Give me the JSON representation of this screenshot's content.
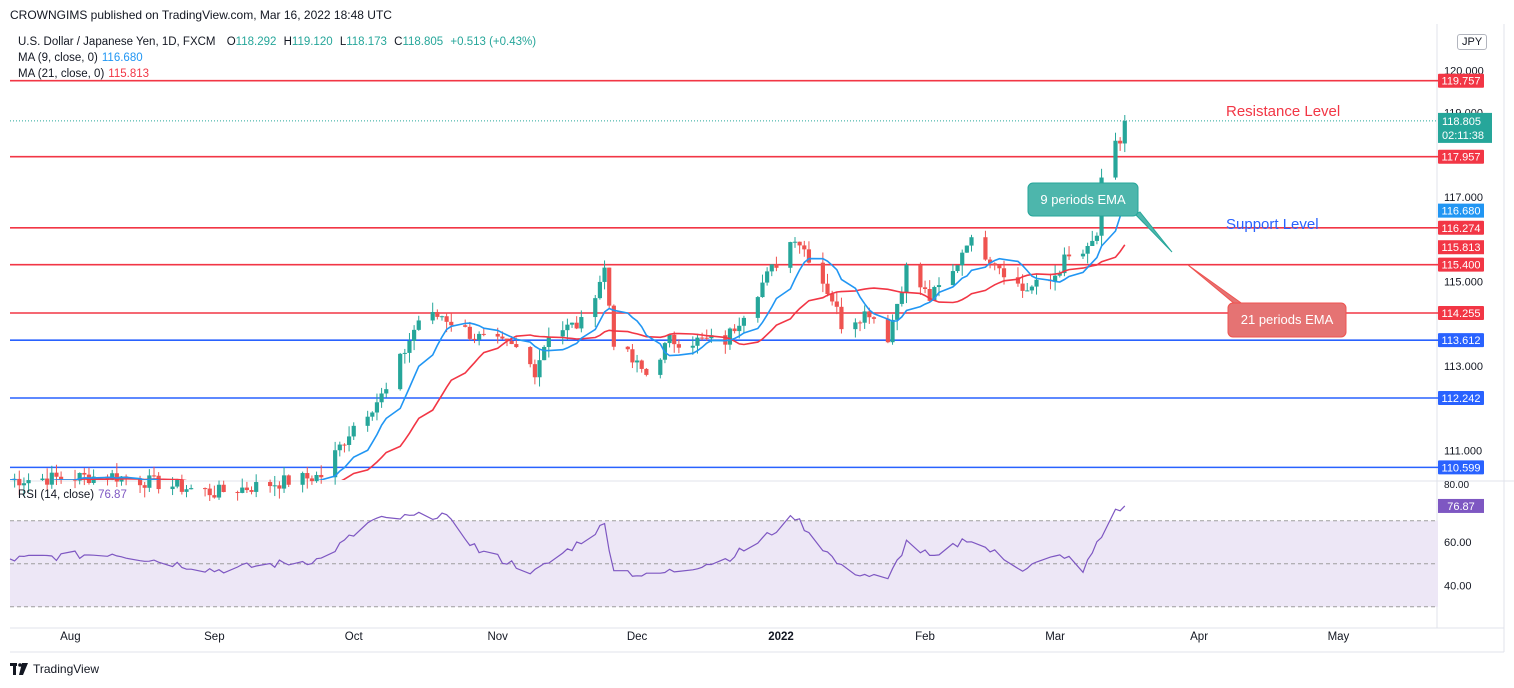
{
  "header": {
    "published": "CROWNGIMS published on TradingView.com, Mar 16, 2022 18:48 UTC",
    "symbol": "U.S. Dollar / Japanese Yen, 1D, FXCM",
    "o_label": "O",
    "o": "118.292",
    "h_label": "H",
    "h": "119.120",
    "l_label": "L",
    "l": "118.173",
    "c_label": "C",
    "c": "118.805",
    "change": "+0.513 (+0.43%)",
    "ma9_label": "MA (9, close, 0)",
    "ma9_value": "116.680",
    "ma21_label": "MA (21, close, 0)",
    "ma21_value": "115.813",
    "rsi_label": "RSI (14, close)",
    "rsi_value": "76.87",
    "currency": "JPY"
  },
  "footer": {
    "brand": "TradingView"
  },
  "colors": {
    "up": "#26a69a",
    "down": "#ef5350",
    "ma9": "#2196f3",
    "ma21": "#f23645",
    "resistance": "#f23645",
    "support": "#2962ff",
    "rsi": "#7e57c2",
    "rsi_band": "#ede7f6"
  },
  "chart_data": {
    "type": "candlestick",
    "x_axis": {
      "range": [
        "2021-07-19",
        "2022-05-22"
      ],
      "ticks": [
        {
          "date": "2021-08-01",
          "label": "Aug"
        },
        {
          "date": "2021-09-01",
          "label": "Sep"
        },
        {
          "date": "2021-10-01",
          "label": "Oct"
        },
        {
          "date": "2021-11-01",
          "label": "Nov"
        },
        {
          "date": "2021-12-01",
          "label": "Dec"
        },
        {
          "date": "2022-01-01",
          "label": "2022"
        },
        {
          "date": "2022-02-01",
          "label": "Feb"
        },
        {
          "date": "2022-03-01",
          "label": "Mar"
        },
        {
          "date": "2022-04-01",
          "label": "Apr"
        },
        {
          "date": "2022-05-01",
          "label": "May"
        }
      ]
    },
    "price_axis": {
      "ylim": [
        110.3,
        121.1
      ],
      "ticks": [
        "111.000",
        "113.000",
        "115.000",
        "117.000",
        "119.000",
        "120.000"
      ]
    },
    "horizontal_levels": [
      {
        "value": 119.757,
        "label": "119.757",
        "kind": "resistance"
      },
      {
        "value": 117.957,
        "label": "117.957",
        "kind": "resistance"
      },
      {
        "value": 116.274,
        "label": "116.274",
        "kind": "resistance"
      },
      {
        "value": 115.4,
        "label": "115.400",
        "kind": "resistance"
      },
      {
        "value": 114.255,
        "label": "114.255",
        "kind": "resistance"
      },
      {
        "value": 113.612,
        "label": "113.612",
        "kind": "support"
      },
      {
        "value": 112.242,
        "label": "112.242",
        "kind": "support"
      },
      {
        "value": 110.599,
        "label": "110.599",
        "kind": "support"
      }
    ],
    "last_price": {
      "value": 118.805,
      "label": "118.805",
      "countdown": "02:11:38"
    },
    "ma_tags": [
      {
        "value": 116.68,
        "label": "116.680",
        "series": "ma9"
      },
      {
        "value": 115.813,
        "label": "115.813",
        "series": "ma21"
      }
    ],
    "annotations": [
      {
        "text": "Resistance Level",
        "kind": "text"
      },
      {
        "text": "Support Level",
        "kind": "text"
      },
      {
        "text": "9 periods EMA",
        "kind": "callout"
      },
      {
        "text": "21 periods EMA",
        "kind": "callout"
      }
    ],
    "anchors": [
      {
        "date": "2021-07-19",
        "close": 110.3
      },
      {
        "date": "2021-08-10",
        "close": 110.4
      },
      {
        "date": "2021-09-01",
        "close": 110.0
      },
      {
        "date": "2021-09-24",
        "close": 110.4
      },
      {
        "date": "2021-10-01",
        "close": 111.6
      },
      {
        "date": "2021-10-08",
        "close": 112.4
      },
      {
        "date": "2021-10-15",
        "close": 114.1
      },
      {
        "date": "2021-10-20",
        "close": 114.2
      },
      {
        "date": "2021-10-27",
        "close": 113.7
      },
      {
        "date": "2021-11-05",
        "close": 113.4
      },
      {
        "date": "2021-11-09",
        "close": 112.9
      },
      {
        "date": "2021-11-12",
        "close": 113.8
      },
      {
        "date": "2021-11-19",
        "close": 114.0
      },
      {
        "date": "2021-11-24",
        "close": 115.3
      },
      {
        "date": "2021-11-26",
        "close": 113.6
      },
      {
        "date": "2021-11-30",
        "close": 113.1
      },
      {
        "date": "2021-12-03",
        "close": 112.8
      },
      {
        "date": "2021-12-08",
        "close": 113.6
      },
      {
        "date": "2021-12-14",
        "close": 113.6
      },
      {
        "date": "2021-12-20",
        "close": 113.6
      },
      {
        "date": "2021-12-27",
        "close": 114.8
      },
      {
        "date": "2022-01-04",
        "close": 116.1
      },
      {
        "date": "2022-01-07",
        "close": 115.6
      },
      {
        "date": "2022-01-12",
        "close": 114.6
      },
      {
        "date": "2022-01-14",
        "close": 114.0
      },
      {
        "date": "2022-01-20",
        "close": 114.3
      },
      {
        "date": "2022-01-24",
        "close": 113.7
      },
      {
        "date": "2022-01-28",
        "close": 115.3
      },
      {
        "date": "2022-02-02",
        "close": 114.6
      },
      {
        "date": "2022-02-07",
        "close": 115.2
      },
      {
        "date": "2022-02-10",
        "close": 116.0
      },
      {
        "date": "2022-02-16",
        "close": 115.5
      },
      {
        "date": "2022-02-22",
        "close": 114.8
      },
      {
        "date": "2022-02-28",
        "close": 115.0
      },
      {
        "date": "2022-03-03",
        "close": 115.5
      },
      {
        "date": "2022-03-08",
        "close": 115.7
      },
      {
        "date": "2022-03-10",
        "close": 116.1
      },
      {
        "date": "2022-03-11",
        "close": 117.3
      },
      {
        "date": "2022-03-14",
        "close": 118.2
      },
      {
        "date": "2022-03-15",
        "close": 118.3
      },
      {
        "date": "2022-03-16",
        "close": 118.805
      }
    ],
    "rsi": {
      "ylim": [
        22,
        88
      ],
      "ticks": [
        "40.00",
        "60.00"
      ],
      "levels": [
        70,
        50,
        30
      ],
      "top_value_label": "80.00",
      "anchors": [
        {
          "date": "2021-07-19",
          "value": 52
        },
        {
          "date": "2021-08-10",
          "value": 55
        },
        {
          "date": "2021-09-01",
          "value": 47
        },
        {
          "date": "2021-09-24",
          "value": 52
        },
        {
          "date": "2021-10-05",
          "value": 70
        },
        {
          "date": "2021-10-20",
          "value": 73
        },
        {
          "date": "2021-10-28",
          "value": 56
        },
        {
          "date": "2021-11-09",
          "value": 46
        },
        {
          "date": "2021-11-24",
          "value": 68
        },
        {
          "date": "2021-11-26",
          "value": 48
        },
        {
          "date": "2021-12-03",
          "value": 44
        },
        {
          "date": "2021-12-20",
          "value": 52
        },
        {
          "date": "2021-12-27",
          "value": 60
        },
        {
          "date": "2022-01-04",
          "value": 72
        },
        {
          "date": "2022-01-14",
          "value": 48
        },
        {
          "date": "2022-01-24",
          "value": 42
        },
        {
          "date": "2022-01-28",
          "value": 60
        },
        {
          "date": "2022-02-03",
          "value": 52
        },
        {
          "date": "2022-02-10",
          "value": 62
        },
        {
          "date": "2022-02-22",
          "value": 48
        },
        {
          "date": "2022-03-03",
          "value": 54
        },
        {
          "date": "2022-03-07",
          "value": 46
        },
        {
          "date": "2022-03-10",
          "value": 60
        },
        {
          "date": "2022-03-14",
          "value": 74
        },
        {
          "date": "2022-03-16",
          "value": 76.87
        }
      ]
    }
  }
}
